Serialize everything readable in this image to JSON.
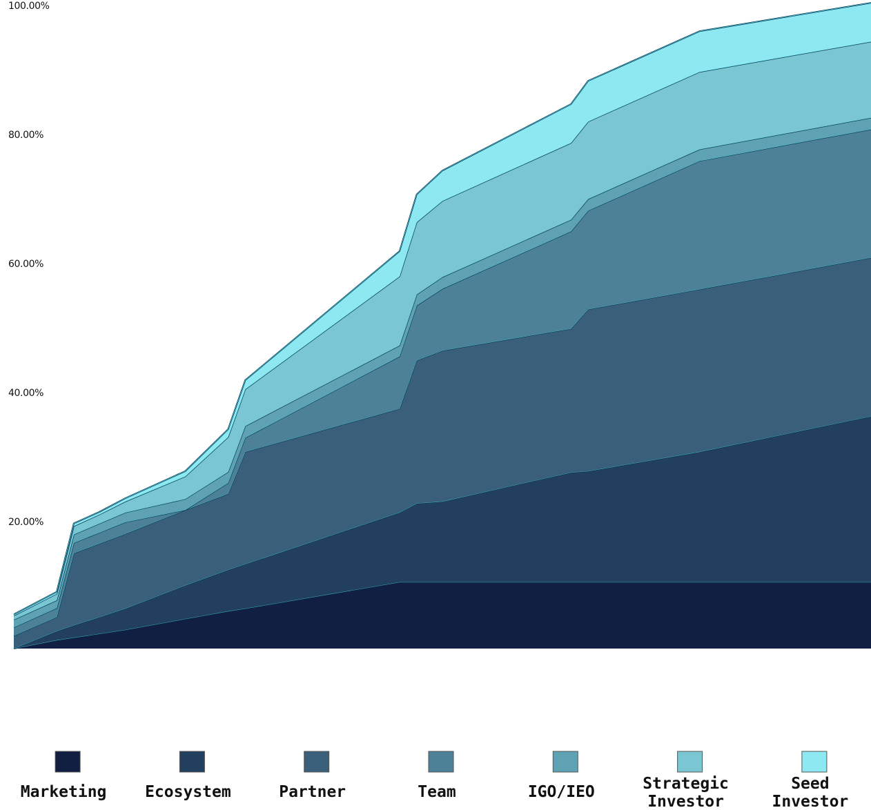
{
  "chart_data": {
    "type": "area",
    "stacked": true,
    "title": "",
    "xlabel": "",
    "ylabel": "",
    "ylim": [
      0,
      100
    ],
    "y_ticks": [
      "20.00%",
      "40.00%",
      "60.00%",
      "80.00%",
      "100.00%"
    ],
    "grid": false,
    "legend_position": "bottom",
    "x": [
      0,
      5,
      7,
      10,
      13,
      20,
      25,
      27,
      45,
      47,
      50,
      65,
      67,
      80,
      100
    ],
    "series": [
      {
        "name": "Marketing",
        "color": "#101f42",
        "values": [
          0,
          1.3,
          1.7,
          2.3,
          2.9,
          4.6,
          5.8,
          6.2,
          10.3,
          10.3,
          10.3,
          10.3,
          10.3,
          10.3,
          10.3
        ]
      },
      {
        "name": "Ecosystem",
        "color": "#233f5f",
        "values": [
          0,
          1.4,
          1.9,
          2.6,
          3.3,
          5.2,
          6.4,
          6.9,
          10.8,
          12.2,
          12.5,
          17.0,
          17.2,
          20.2,
          25.7
        ]
      },
      {
        "name": "Partner",
        "color": "#395f7b",
        "values": [
          2.0,
          2.2,
          11.2,
          11.4,
          11.6,
          11.7,
          11.8,
          17.4,
          16.1,
          22.2,
          23.4,
          22.3,
          25.1,
          25.2,
          24.6
        ]
      },
      {
        "name": "Team",
        "color": "#4c8198",
        "values": [
          1.3,
          1.4,
          1.6,
          1.7,
          1.8,
          0.0,
          1.7,
          2.2,
          8.1,
          8.5,
          9.6,
          15.1,
          15.3,
          19.9,
          19.9
        ]
      },
      {
        "name": "IGO/IEO",
        "color": "#5fa2b3",
        "values": [
          1.2,
          1.2,
          1.3,
          1.4,
          1.5,
          1.7,
          1.7,
          1.8,
          1.7,
          1.7,
          1.8,
          1.8,
          1.8,
          1.8,
          1.8
        ]
      },
      {
        "name": "Strategic\nInvestor",
        "color": "#7ac6d3",
        "values": [
          0.6,
          1.0,
          1.3,
          1.4,
          1.7,
          3.5,
          5.4,
          5.7,
          10.7,
          11.2,
          11.8,
          11.9,
          12.0,
          12.0,
          11.8
        ]
      },
      {
        "name": "Seed\nInvestor",
        "color": "#8de8f1",
        "values": [
          0.2,
          0.3,
          0.4,
          0.4,
          0.5,
          0.8,
          1.2,
          1.4,
          3.9,
          4.3,
          4.7,
          6.0,
          6.3,
          6.3,
          6.0
        ]
      }
    ]
  }
}
